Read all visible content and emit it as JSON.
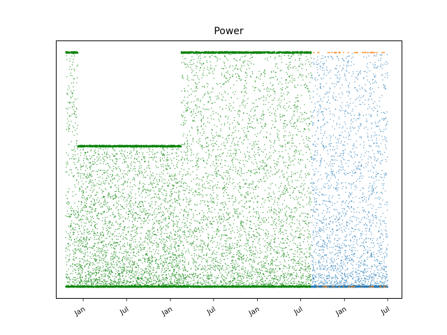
{
  "chart_data": {
    "type": "scatter",
    "title": "Power",
    "xlabel": "",
    "ylabel": "",
    "x_axis_kind": "date",
    "x_tick_labels": [
      "Jan",
      "Jul",
      "Jan",
      "Jul",
      "Jan",
      "Jul",
      "Jan",
      "Jul"
    ],
    "x_tick_dates": [
      "2020-01-01",
      "2020-07-01",
      "2021-01-01",
      "2021-07-01",
      "2022-01-01",
      "2022-07-01",
      "2023-01-01",
      "2023-07-01"
    ],
    "x_tick_rotation_deg": 30,
    "xlim": [
      "2019-09-10",
      "2023-08-30"
    ],
    "ylim": [
      -0.05,
      1.05
    ],
    "y_ticks_visible": false,
    "grid": false,
    "legend": "none",
    "point_size": "tiny",
    "series": [
      {
        "color": "#008000",
        "segments": [
          {
            "start": "2019-10-20",
            "end": "2019-12-10",
            "cap": 1.0,
            "dense_band_at": 1.0
          },
          {
            "start": "2019-12-10",
            "end": "2021-02-15",
            "cap": 0.6,
            "dense_band_at": 0.6
          },
          {
            "start": "2021-02-15",
            "end": "2022-08-15",
            "cap": 1.0,
            "dense_band_at": 1.0
          }
        ],
        "floor_line_at": 0.0
      },
      {
        "color": "#1f77b4",
        "segments": [
          {
            "start": "2022-08-15",
            "end": "2023-07-01",
            "cap": 1.0
          }
        ],
        "floor_line_at": 0.0
      },
      {
        "color": "#ff7f0e",
        "segments": [
          {
            "start": "2022-08-20",
            "end": "2023-06-25",
            "cap": 1.0
          }
        ],
        "pattern": "sparse points at y=0 and y=1"
      }
    ]
  }
}
